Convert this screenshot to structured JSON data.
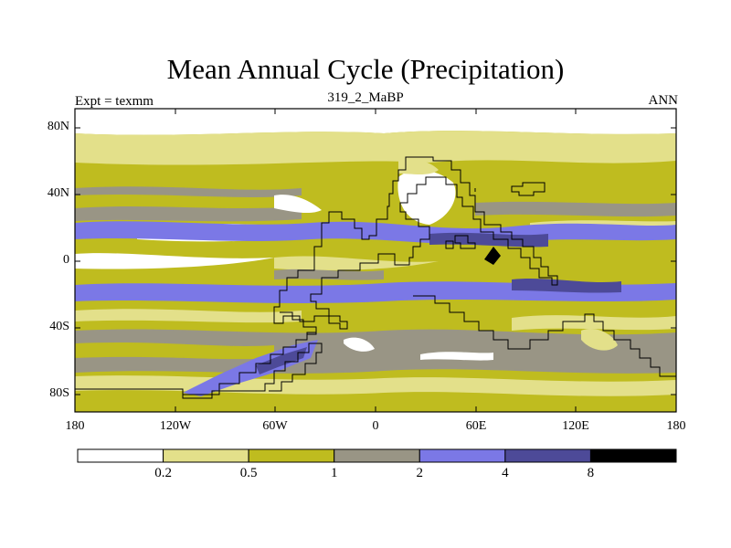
{
  "title": "Mean Annual Cycle (Precipitation)",
  "experiment_label": "Expt = texmm",
  "run_label": "319_2_MaBP",
  "season_label": "ANN",
  "lat_ticks": [
    "80N",
    "40N",
    "0",
    "40S",
    "80S"
  ],
  "lon_ticks": [
    "180",
    "120W",
    "60W",
    "0",
    "60E",
    "120E",
    "180"
  ],
  "colorbar": {
    "colors": [
      "#ffffff",
      "#e3e08a",
      "#bfbc1f",
      "#999585",
      "#7b78e6",
      "#4d4a98",
      "#000000"
    ],
    "labels": [
      "0.2",
      "0.5",
      "1",
      "2",
      "4",
      "8"
    ]
  }
}
